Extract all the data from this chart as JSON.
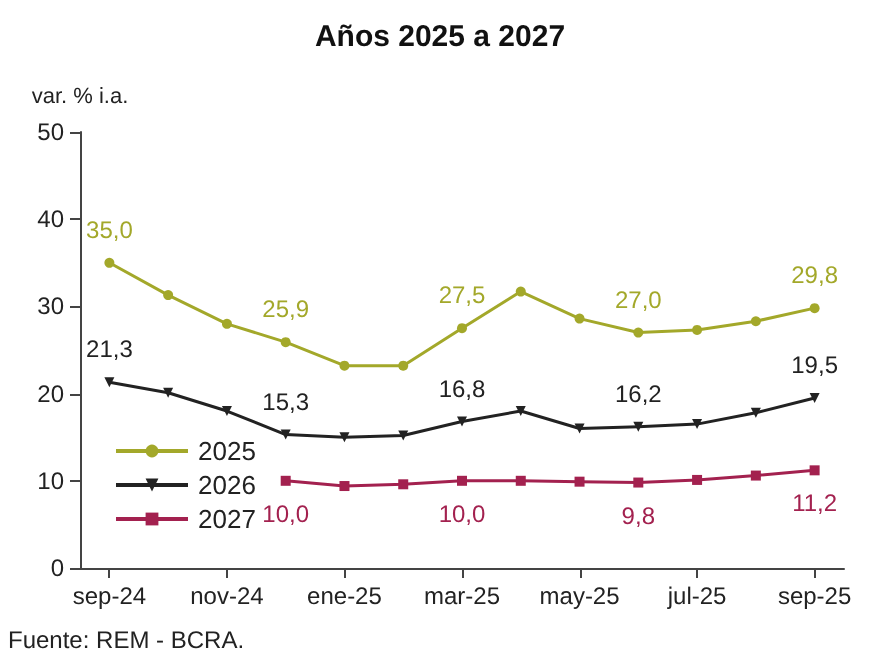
{
  "chart_data": {
    "type": "line",
    "title": "Años 2025 a 2027",
    "ylabel": "var. % i.a.",
    "categories": [
      "sep-24",
      null,
      "nov-24",
      null,
      "ene-25",
      null,
      "mar-25",
      null,
      "may-25",
      null,
      "jul-25",
      null,
      "sep-25"
    ],
    "series": [
      {
        "name": "2025",
        "color": "#a3a82a",
        "marker": "circle",
        "values": [
          35.0,
          31.3,
          28.0,
          25.9,
          23.2,
          23.2,
          27.5,
          31.7,
          28.6,
          27.0,
          27.3,
          28.3,
          29.8
        ],
        "value_labels": [
          "35,0",
          null,
          null,
          "25,9",
          null,
          null,
          "27,5",
          null,
          null,
          "27,0",
          null,
          null,
          "29,8"
        ]
      },
      {
        "name": "2026",
        "color": "#222222",
        "marker": "triangle",
        "values": [
          21.3,
          20.1,
          18.0,
          15.3,
          15.0,
          15.2,
          16.8,
          18.0,
          16.0,
          16.2,
          16.5,
          17.8,
          19.5
        ],
        "value_labels": [
          "21,3",
          null,
          null,
          "15,3",
          null,
          null,
          "16,8",
          null,
          null,
          "16,2",
          null,
          null,
          "19,5"
        ]
      },
      {
        "name": "2027",
        "color": "#a3214f",
        "marker": "square",
        "values": [
          null,
          null,
          null,
          10.0,
          9.4,
          9.6,
          10.0,
          10.0,
          9.9,
          9.8,
          10.1,
          10.6,
          11.2
        ],
        "value_labels": [
          null,
          null,
          null,
          "10,0",
          null,
          null,
          "10,0",
          null,
          null,
          "9,8",
          null,
          null,
          "11,2"
        ]
      }
    ],
    "ylim": [
      0,
      50
    ],
    "yticks": [
      0,
      10,
      20,
      30,
      40,
      50
    ],
    "grid": false,
    "legend": "left",
    "annotations": [
      "Fuente: REM - BCRA."
    ]
  }
}
